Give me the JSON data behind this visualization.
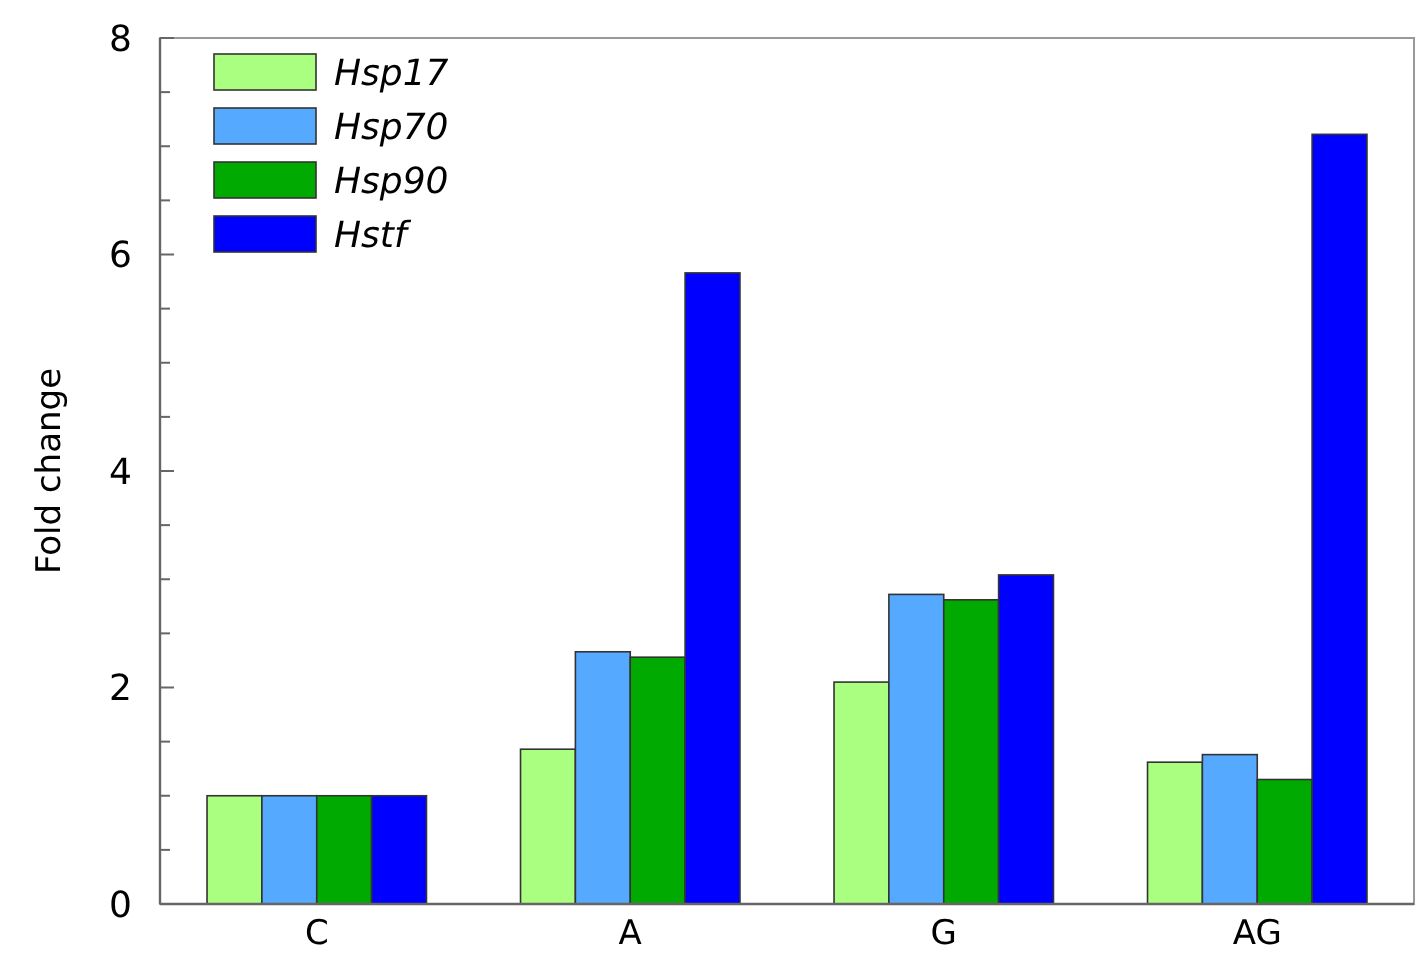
{
  "chart_data": {
    "type": "bar",
    "ylabel": "Fold change",
    "categories": [
      "C",
      "A",
      "G",
      "AG"
    ],
    "series": [
      {
        "name": "Hsp17",
        "color": "#aaff80",
        "values": [
          1.0,
          1.43,
          2.05,
          1.31
        ]
      },
      {
        "name": "Hsp70",
        "color": "#55aaff",
        "values": [
          1.0,
          2.33,
          2.86,
          1.38
        ]
      },
      {
        "name": "Hsp90",
        "color": "#00aa00",
        "values": [
          1.0,
          2.28,
          2.81,
          1.15
        ]
      },
      {
        "name": "Hstf",
        "color": "#0000ff",
        "values": [
          1.0,
          5.83,
          3.04,
          7.11
        ]
      }
    ],
    "ylim": [
      0,
      8
    ],
    "yticks": [
      0,
      {
        "value": 0.5,
        "label": null
      },
      {
        "value": 1,
        "label": null
      },
      {
        "value": 1.5,
        "label": null
      },
      2,
      {
        "value": 2.5,
        "label": null
      },
      {
        "value": 3,
        "label": null
      },
      {
        "value": 3.5,
        "label": null
      },
      4,
      {
        "value": 4.5,
        "label": null
      },
      {
        "value": 5,
        "label": null
      },
      {
        "value": 5.5,
        "label": null
      },
      6,
      {
        "value": 6.5,
        "label": null
      },
      {
        "value": 7,
        "label": null
      },
      {
        "value": 7.5,
        "label": null
      },
      8
    ],
    "grid": false,
    "legend": "top left"
  }
}
